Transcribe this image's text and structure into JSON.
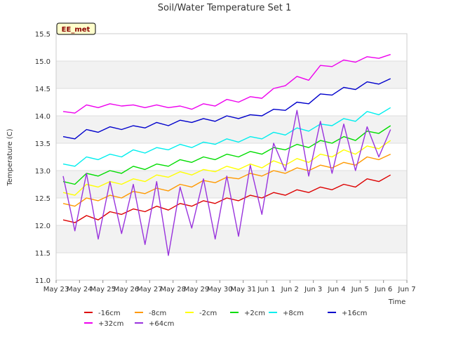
{
  "chart_data": {
    "type": "line",
    "title": "Soil/Water Temperature Set 1",
    "xlabel": "Time",
    "ylabel": "Temperature (C)",
    "station_label": "EE_met",
    "ylim": [
      11.0,
      15.5
    ],
    "xlim": [
      0,
      15
    ],
    "y_ticks": [
      11.0,
      11.5,
      12.0,
      12.5,
      13.0,
      13.5,
      14.0,
      14.5,
      15.0,
      15.5
    ],
    "y_tick_labels": [
      "11.0",
      "11.5",
      "12.0",
      "12.5",
      "13.0",
      "13.5",
      "14.0",
      "14.5",
      "15.0",
      "15.5"
    ],
    "x_ticks": [
      0,
      1,
      2,
      3,
      4,
      5,
      6,
      7,
      8,
      9,
      10,
      11,
      12,
      13,
      14,
      15
    ],
    "x_tick_labels": [
      "May 23",
      "May 24",
      "May 25",
      "May 26",
      "May 27",
      "May 28",
      "May 29",
      "May 30",
      "May 31",
      "Jun 1",
      "Jun 2",
      "Jun 3",
      "Jun 4",
      "Jun 5",
      "Jun 6",
      "Jun 7"
    ],
    "grid": true,
    "legend_position": "bottom",
    "x": [
      0.3,
      0.8,
      1.3,
      1.8,
      2.3,
      2.8,
      3.3,
      3.8,
      4.3,
      4.8,
      5.3,
      5.8,
      6.3,
      6.8,
      7.3,
      7.8,
      8.3,
      8.8,
      9.3,
      9.8,
      10.3,
      10.8,
      11.3,
      11.8,
      12.3,
      12.8,
      13.3,
      13.8,
      14.3
    ],
    "series": [
      {
        "name": "-16cm",
        "color": "#dd0000",
        "values": [
          12.1,
          12.05,
          12.18,
          12.1,
          12.25,
          12.2,
          12.3,
          12.25,
          12.35,
          12.28,
          12.4,
          12.35,
          12.45,
          12.4,
          12.5,
          12.45,
          12.55,
          12.5,
          12.6,
          12.55,
          12.65,
          12.6,
          12.7,
          12.65,
          12.75,
          12.7,
          12.85,
          12.8,
          12.92
        ]
      },
      {
        "name": "-8cm",
        "color": "#ff9900",
        "values": [
          12.4,
          12.35,
          12.5,
          12.45,
          12.55,
          12.5,
          12.62,
          12.58,
          12.68,
          12.63,
          12.75,
          12.7,
          12.82,
          12.78,
          12.88,
          12.85,
          12.95,
          12.9,
          13.0,
          12.95,
          13.05,
          13.0,
          13.1,
          13.05,
          13.15,
          13.1,
          13.25,
          13.2,
          13.3
        ]
      },
      {
        "name": "-2cm",
        "color": "#ffff00",
        "values": [
          12.6,
          12.55,
          12.75,
          12.7,
          12.8,
          12.75,
          12.85,
          12.8,
          12.92,
          12.88,
          12.98,
          12.92,
          13.02,
          12.98,
          13.08,
          13.02,
          13.12,
          13.05,
          13.18,
          13.1,
          13.22,
          13.15,
          13.3,
          13.25,
          13.38,
          13.3,
          13.45,
          13.4,
          13.55
        ]
      },
      {
        "name": "+2cm",
        "color": "#00dd00",
        "values": [
          12.8,
          12.75,
          12.95,
          12.9,
          13.0,
          12.95,
          13.08,
          13.02,
          13.12,
          13.08,
          13.2,
          13.15,
          13.25,
          13.2,
          13.3,
          13.25,
          13.35,
          13.3,
          13.42,
          13.38,
          13.48,
          13.42,
          13.55,
          13.5,
          13.62,
          13.55,
          13.72,
          13.68,
          13.82
        ]
      },
      {
        "name": "+8cm",
        "color": "#00eeee",
        "values": [
          13.12,
          13.08,
          13.25,
          13.2,
          13.3,
          13.25,
          13.38,
          13.32,
          13.42,
          13.38,
          13.48,
          13.42,
          13.52,
          13.48,
          13.58,
          13.52,
          13.62,
          13.58,
          13.7,
          13.65,
          13.78,
          13.72,
          13.85,
          13.82,
          13.95,
          13.9,
          14.08,
          14.02,
          14.15
        ]
      },
      {
        "name": "+16cm",
        "color": "#0000cc",
        "values": [
          13.62,
          13.58,
          13.75,
          13.7,
          13.8,
          13.75,
          13.82,
          13.78,
          13.88,
          13.82,
          13.92,
          13.88,
          13.95,
          13.9,
          14.0,
          13.95,
          14.02,
          14.0,
          14.12,
          14.1,
          14.25,
          14.22,
          14.4,
          14.38,
          14.52,
          14.48,
          14.62,
          14.58,
          14.68
        ]
      },
      {
        "name": "+32cm",
        "color": "#ee00ee",
        "values": [
          14.08,
          14.05,
          14.2,
          14.15,
          14.22,
          14.18,
          14.2,
          14.15,
          14.2,
          14.15,
          14.18,
          14.12,
          14.22,
          14.18,
          14.3,
          14.25,
          14.35,
          14.32,
          14.5,
          14.55,
          14.72,
          14.65,
          14.92,
          14.9,
          15.02,
          14.98,
          15.08,
          15.05,
          15.12
        ]
      },
      {
        "name": "+64cm",
        "color": "#9933dd",
        "values": [
          12.9,
          11.9,
          12.95,
          11.75,
          12.8,
          11.85,
          12.75,
          11.65,
          12.8,
          11.45,
          12.7,
          11.95,
          12.85,
          11.75,
          12.9,
          11.8,
          13.1,
          12.2,
          13.5,
          13.0,
          14.1,
          12.9,
          13.9,
          12.95,
          13.85,
          13.0,
          13.8,
          13.25,
          13.75
        ]
      }
    ]
  }
}
